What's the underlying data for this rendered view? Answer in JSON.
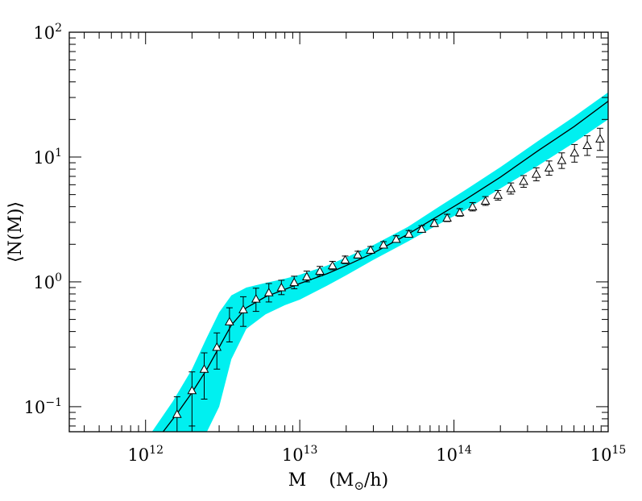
{
  "chart_data": {
    "type": "line",
    "title": "",
    "xlabel": "M",
    "xunit": "(M⊙/h)",
    "ylabel": "⟨N(M)⟩",
    "xscale": "log",
    "yscale": "log",
    "xlim": [
      320000000000.0,
      1000000000000000.0
    ],
    "ylim": [
      0.063,
      100
    ],
    "grid": false,
    "x_ticks": [
      {
        "base": "10",
        "exp": "12",
        "value": 1000000000000.0
      },
      {
        "base": "10",
        "exp": "13",
        "value": 10000000000000.0
      },
      {
        "base": "10",
        "exp": "14",
        "value": 100000000000000.0
      },
      {
        "base": "10",
        "exp": "15",
        "value": 1000000000000000.0
      }
    ],
    "y_ticks": [
      {
        "base": "10",
        "exp": "−1",
        "value": 0.1
      },
      {
        "base": "10",
        "exp": "0",
        "value": 1
      },
      {
        "base": "10",
        "exp": "1",
        "value": 10
      },
      {
        "base": "10",
        "exp": "2",
        "value": 100
      }
    ],
    "colors": {
      "band": "#00f0f0",
      "line": "#000000",
      "points": "#000000"
    },
    "series": [
      {
        "kind": "band",
        "x": [
          1100000000000.0,
          1500000000000.0,
          2000000000000.0,
          2500000000000.0,
          3000000000000.0,
          3600000000000.0,
          4500000000000.0,
          6000000000000.0,
          8000000000000.0,
          10000000000000.0,
          15000000000000.0,
          20000000000000.0,
          30000000000000.0,
          50000000000000.0,
          80000000000000.0,
          120000000000000.0,
          200000000000000.0,
          350000000000000.0,
          600000000000000.0,
          1000000000000000.0
        ],
        "upper": [
          0.063,
          0.11,
          0.2,
          0.36,
          0.57,
          0.78,
          0.9,
          0.98,
          1.06,
          1.14,
          1.35,
          1.57,
          1.97,
          2.75,
          4.0,
          5.5,
          8.3,
          13.4,
          21.0,
          33.0
        ],
        "lower": [
          0.03,
          0.045,
          0.055,
          0.063,
          0.1,
          0.24,
          0.42,
          0.55,
          0.65,
          0.72,
          0.93,
          1.13,
          1.5,
          2.1,
          2.9,
          3.8,
          5.6,
          8.5,
          13.0,
          20.0
        ]
      },
      {
        "kind": "line",
        "x": [
          1300000000000.0,
          1600000000000.0,
          2000000000000.0,
          2500000000000.0,
          3000000000000.0,
          3600000000000.0,
          4500000000000.0,
          6000000000000.0,
          8000000000000.0,
          10000000000000.0,
          15000000000000.0,
          20000000000000.0,
          30000000000000.0,
          50000000000000.0,
          80000000000000.0,
          120000000000000.0,
          200000000000000.0,
          350000000000000.0,
          600000000000000.0,
          1000000000000000.0
        ],
        "y": [
          0.063,
          0.088,
          0.13,
          0.2,
          0.3,
          0.45,
          0.62,
          0.76,
          0.87,
          0.97,
          1.16,
          1.35,
          1.7,
          2.4,
          3.4,
          4.6,
          6.9,
          11.2,
          17.5,
          28.0
        ]
      },
      {
        "kind": "points",
        "x": [
          1600000000000.0,
          2000000000000.0,
          2400000000000.0,
          2900000000000.0,
          3500000000000.0,
          4300000000000.0,
          5200000000000.0,
          6300000000000.0,
          7600000000000.0,
          9200000000000.0,
          11100000000000.0,
          13500000000000.0,
          16300000000000.0,
          19700000000000.0,
          23800000000000.0,
          28800000000000.0,
          34900000000000.0,
          42200000000000.0,
          51000000000000.0,
          61700000000000.0,
          74600000000000.0,
          90300000000000.0,
          109000000000000.0,
          132000000000000.0,
          160000000000000.0,
          193000000000000.0,
          234000000000000.0,
          283000000000000.0,
          342000000000000.0,
          414000000000000.0,
          500000000000000.0,
          605000000000000.0,
          732000000000000.0,
          886000000000000.0
        ],
        "y": [
          0.087,
          0.135,
          0.2,
          0.3,
          0.48,
          0.6,
          0.73,
          0.82,
          0.9,
          0.99,
          1.1,
          1.22,
          1.35,
          1.5,
          1.65,
          1.8,
          1.98,
          2.2,
          2.42,
          2.65,
          2.95,
          3.25,
          3.6,
          4.0,
          4.45,
          4.95,
          5.6,
          6.4,
          7.3,
          8.2,
          9.4,
          10.8,
          12.4,
          14.0
        ],
        "err_low": [
          0.045,
          0.07,
          0.115,
          0.2,
          0.33,
          0.44,
          0.58,
          0.69,
          0.79,
          0.88,
          1.0,
          1.12,
          1.25,
          1.4,
          1.55,
          1.7,
          1.88,
          2.08,
          2.28,
          2.5,
          2.77,
          3.04,
          3.35,
          3.7,
          4.1,
          4.52,
          5.05,
          5.72,
          6.45,
          7.15,
          8.1,
          9.1,
          10.3,
          11.3
        ],
        "err_high": [
          0.12,
          0.19,
          0.27,
          0.39,
          0.62,
          0.76,
          0.89,
          0.97,
          1.03,
          1.11,
          1.22,
          1.33,
          1.46,
          1.61,
          1.76,
          1.92,
          2.1,
          2.34,
          2.58,
          2.82,
          3.15,
          3.48,
          3.86,
          4.32,
          4.82,
          5.4,
          6.2,
          7.1,
          8.2,
          9.3,
          10.8,
          12.6,
          14.8,
          17.0
        ]
      }
    ]
  }
}
